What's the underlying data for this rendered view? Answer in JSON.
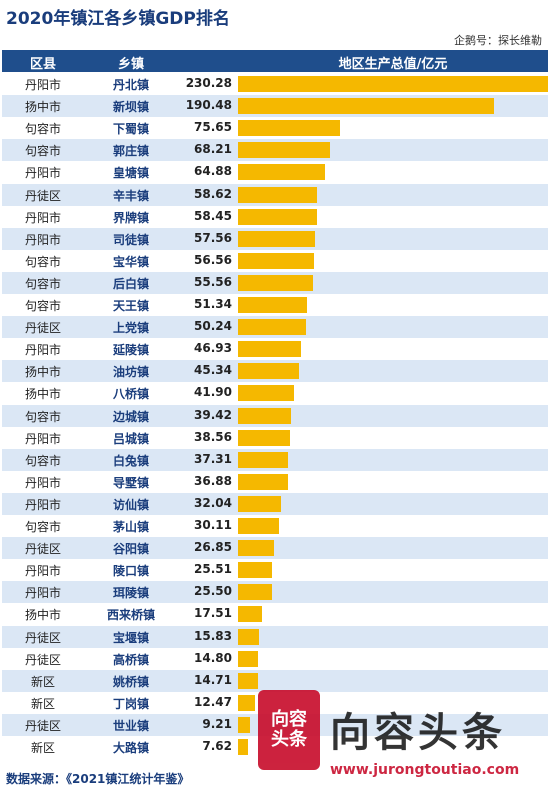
{
  "title": "2020年镇江各乡镇GDP排名",
  "source_top": "企鹅号：探长维勒",
  "header": {
    "county": "区县",
    "town": "乡镇",
    "value": "地区生产总值/亿元"
  },
  "footer": "数据来源：《2021镇江统计年鉴》",
  "watermark": {
    "seal": "向容头条",
    "brand": "向容头条",
    "url": "www.jurongtoutiao.com"
  },
  "colors": {
    "bar": "#f5b800",
    "header": "#1f4e8c",
    "stripe": "#dbe7f5",
    "title": "#1a3d7c"
  },
  "chart_data": {
    "type": "bar",
    "title": "2020年镇江各乡镇GDP排名",
    "ylabel": "地区生产总值/亿元",
    "categories": [
      "丹北镇",
      "新坝镇",
      "下蜀镇",
      "郭庄镇",
      "皇塘镇",
      "辛丰镇",
      "界牌镇",
      "司徒镇",
      "宝华镇",
      "后白镇",
      "天王镇",
      "上党镇",
      "延陵镇",
      "油坊镇",
      "八桥镇",
      "边城镇",
      "吕城镇",
      "白兔镇",
      "导墅镇",
      "访仙镇",
      "茅山镇",
      "谷阳镇",
      "陵口镇",
      "珥陵镇",
      "西来桥镇",
      "宝堰镇",
      "高桥镇",
      "姚桥镇",
      "丁岗镇",
      "世业镇",
      "大路镇"
    ],
    "counties": [
      "丹阳市",
      "扬中市",
      "句容市",
      "句容市",
      "丹阳市",
      "丹徒区",
      "丹阳市",
      "丹阳市",
      "句容市",
      "句容市",
      "句容市",
      "丹徒区",
      "丹阳市",
      "扬中市",
      "扬中市",
      "句容市",
      "丹阳市",
      "句容市",
      "丹阳市",
      "丹阳市",
      "句容市",
      "丹徒区",
      "丹阳市",
      "丹阳市",
      "扬中市",
      "丹徒区",
      "丹徒区",
      "新区",
      "新区",
      "丹徒区",
      "新区"
    ],
    "values": [
      230.28,
      190.48,
      75.65,
      68.21,
      64.88,
      58.62,
      58.45,
      57.56,
      56.56,
      55.56,
      51.34,
      50.24,
      46.93,
      45.34,
      41.9,
      39.42,
      38.56,
      37.31,
      36.88,
      32.04,
      30.11,
      26.85,
      25.51,
      25.5,
      17.51,
      15.83,
      14.8,
      14.71,
      12.47,
      9.21,
      7.62
    ],
    "labels": [
      "230.28",
      "190.48",
      "75.65",
      "68.21",
      "64.88",
      "58.62",
      "58.45",
      "57.56",
      "56.56",
      "55.56",
      "51.34",
      "50.24",
      "46.93",
      "45.34",
      "41.90",
      "39.42",
      "38.56",
      "37.31",
      "36.88",
      "32.04",
      "30.11",
      "26.85",
      "25.51",
      "25.50",
      "17.51",
      "15.83",
      "14.80",
      "14.71",
      "12.47",
      "9.21",
      "7.62"
    ],
    "orientation": "horizontal",
    "xlim": [
      0,
      230.28
    ]
  }
}
